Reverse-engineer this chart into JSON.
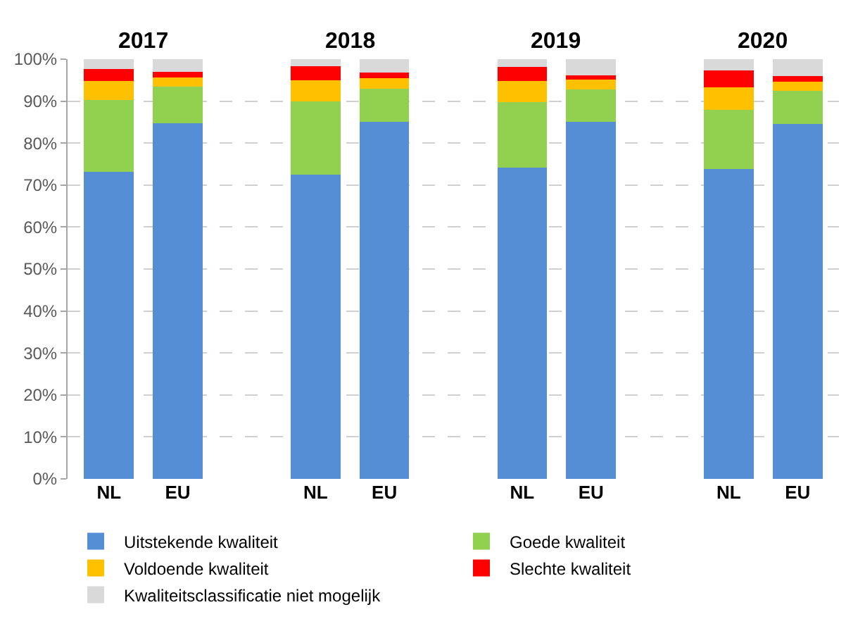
{
  "chart_data": {
    "type": "bar",
    "stacked": true,
    "categories": [
      "NL",
      "EU",
      null,
      "NL",
      "EU",
      null,
      "NL",
      "EU",
      null,
      "NL",
      "EU"
    ],
    "annotations": [
      "2017",
      "2018",
      "2019",
      "2020"
    ],
    "series": [
      {
        "name": "Uitstekende kwaliteit",
        "color": "#558ed5",
        "values": [
          73.2,
          84.8,
          null,
          72.5,
          85.0,
          null,
          74.2,
          85.0,
          null,
          73.8,
          84.6
        ]
      },
      {
        "name": "Goede kwaliteit",
        "color": "#92d050",
        "values": [
          17.1,
          8.7,
          null,
          17.5,
          8.0,
          null,
          15.6,
          7.8,
          null,
          14.1,
          7.8
        ]
      },
      {
        "name": "Voldoende kwaliteit",
        "color": "#ffc000",
        "values": [
          4.5,
          2.2,
          null,
          4.9,
          2.4,
          null,
          5.0,
          2.4,
          null,
          5.4,
          2.2
        ]
      },
      {
        "name": "Slechte kwaliteit",
        "color": "#ff0000",
        "values": [
          2.9,
          1.3,
          null,
          3.5,
          1.4,
          null,
          3.3,
          1.0,
          null,
          4.0,
          1.4
        ]
      },
      {
        "name": "Kwaliteitsclassificatie niet mogelijk",
        "color": "#d9d9d9",
        "values": [
          2.3,
          3.0,
          null,
          1.6,
          3.2,
          null,
          1.9,
          3.8,
          null,
          2.7,
          4.0
        ]
      }
    ],
    "ylim": [
      0,
      100
    ],
    "yticks": [
      {
        "value": 0,
        "label": "0%"
      },
      {
        "value": 10,
        "label": "10%"
      },
      {
        "value": 20,
        "label": "20%"
      },
      {
        "value": 30,
        "label": "30%"
      },
      {
        "value": 40,
        "label": "40%"
      },
      {
        "value": 50,
        "label": "50%"
      },
      {
        "value": 60,
        "label": "60%"
      },
      {
        "value": 70,
        "label": "70%"
      },
      {
        "value": 80,
        "label": "80%"
      },
      {
        "value": 90,
        "label": "90%"
      },
      {
        "value": 100,
        "label": "100%"
      }
    ],
    "grid": "y",
    "legend": "bottom"
  }
}
